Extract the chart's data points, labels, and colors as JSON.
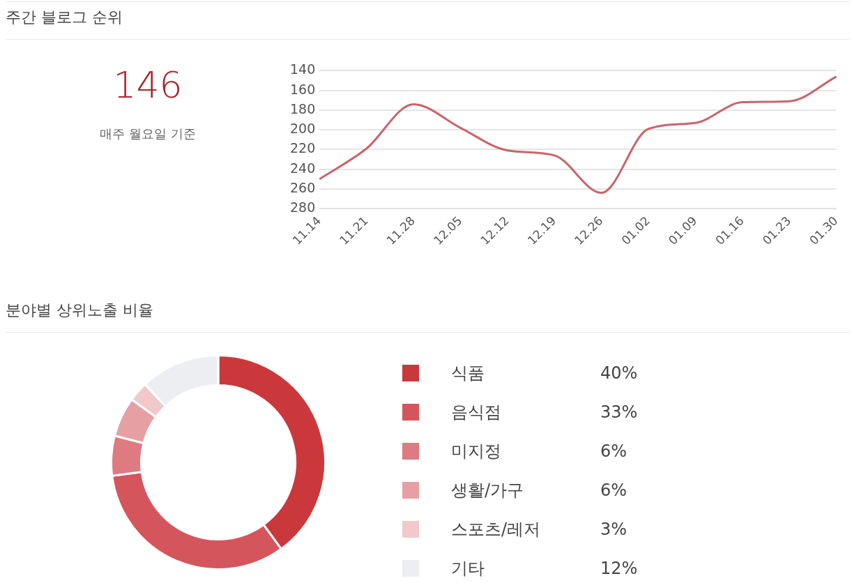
{
  "chart_data": [
    {
      "type": "other",
      "title": "주간 블로그 순위",
      "annotations": [
        "146",
        "매주 월요일 기준"
      ]
    },
    {
      "type": "line",
      "categories": [
        "11.14",
        "11.21",
        "11.28",
        "12.05",
        "12.12",
        "12.19",
        "12.26",
        "01.02",
        "01.09",
        "01.16",
        "01.23",
        "01.30"
      ],
      "series": [
        {
          "color": "#c9646a",
          "values": [
            250,
            219,
            174,
            198,
            221,
            226,
            264,
            199,
            193,
            172,
            171,
            146
          ]
        }
      ],
      "ylim": [
        280,
        140
      ],
      "yticks": [
        140,
        160,
        180,
        200,
        220,
        240,
        260,
        280
      ],
      "grid": "y",
      "marker": "none",
      "line_style": "solid"
    },
    {
      "type": "donut",
      "title": "분야별 상위노출 비율",
      "categories": [
        "식품",
        "음식점",
        "미지정",
        "생활/가구",
        "스포츠/레저",
        "기타"
      ],
      "values": [
        40,
        33,
        6,
        6,
        3,
        12
      ],
      "colors": [
        "#cb383b",
        "#d4565c",
        "#dd7b80",
        "#e6a0a3",
        "#f2c8ca",
        "#eceef2"
      ],
      "value_labels": [
        "40%",
        "33%",
        "6%",
        "6%",
        "3%",
        "12%"
      ],
      "legend": "right"
    }
  ]
}
